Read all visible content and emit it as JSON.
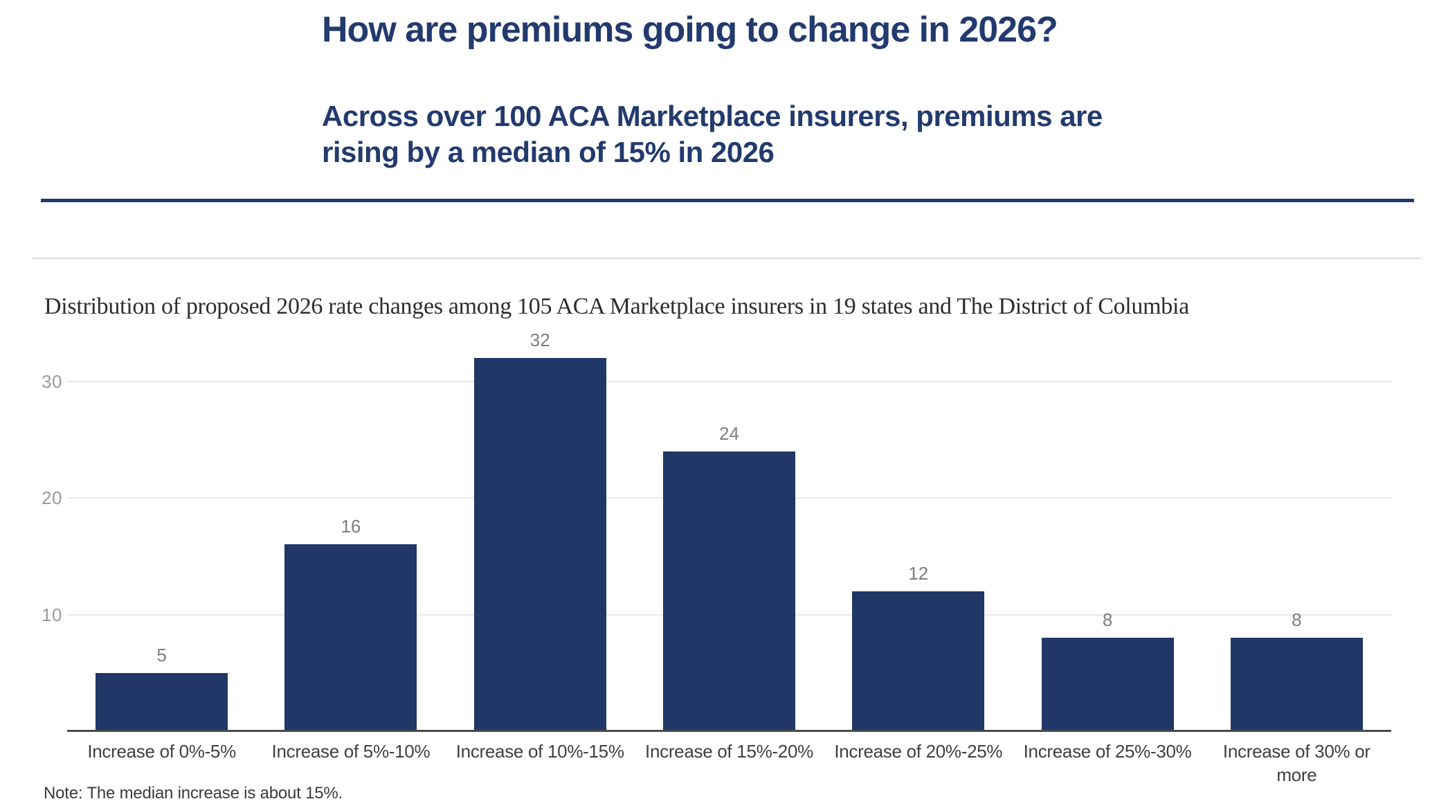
{
  "page": {
    "title": "How are premiums going to change in 2026?",
    "subtitle_line1": "Across over 100 ACA Marketplace insurers, premiums are",
    "subtitle_line2": "rising by a median of 15% in 2026",
    "note": "Note: The median increase is about 15%.",
    "accent_color": "#223a6e"
  },
  "chart_data": {
    "type": "bar",
    "title": "Distribution of proposed 2026 rate changes among 105 ACA Marketplace insurers in 19 states and The District of Columbia",
    "categories": [
      "Increase of 0%-5%",
      "Increase of 5%-10%",
      "Increase of 10%-15%",
      "Increase of 15%-20%",
      "Increase of 20%-25%",
      "Increase of 25%-30%",
      "Increase of 30% or more"
    ],
    "values": [
      5,
      16,
      32,
      24,
      12,
      8,
      8
    ],
    "yticks": [
      10,
      20,
      30
    ],
    "ylim": [
      0,
      34
    ],
    "xlabel": "",
    "ylabel": "",
    "grid": true,
    "value_labels": true,
    "legend": "none",
    "bar_color": "#203768",
    "gridline_color": "#e8e8e8",
    "axis_color": "#4a4a4a",
    "tick_label_color": "#9b9b9b",
    "value_label_color": "#7d7d7d"
  }
}
